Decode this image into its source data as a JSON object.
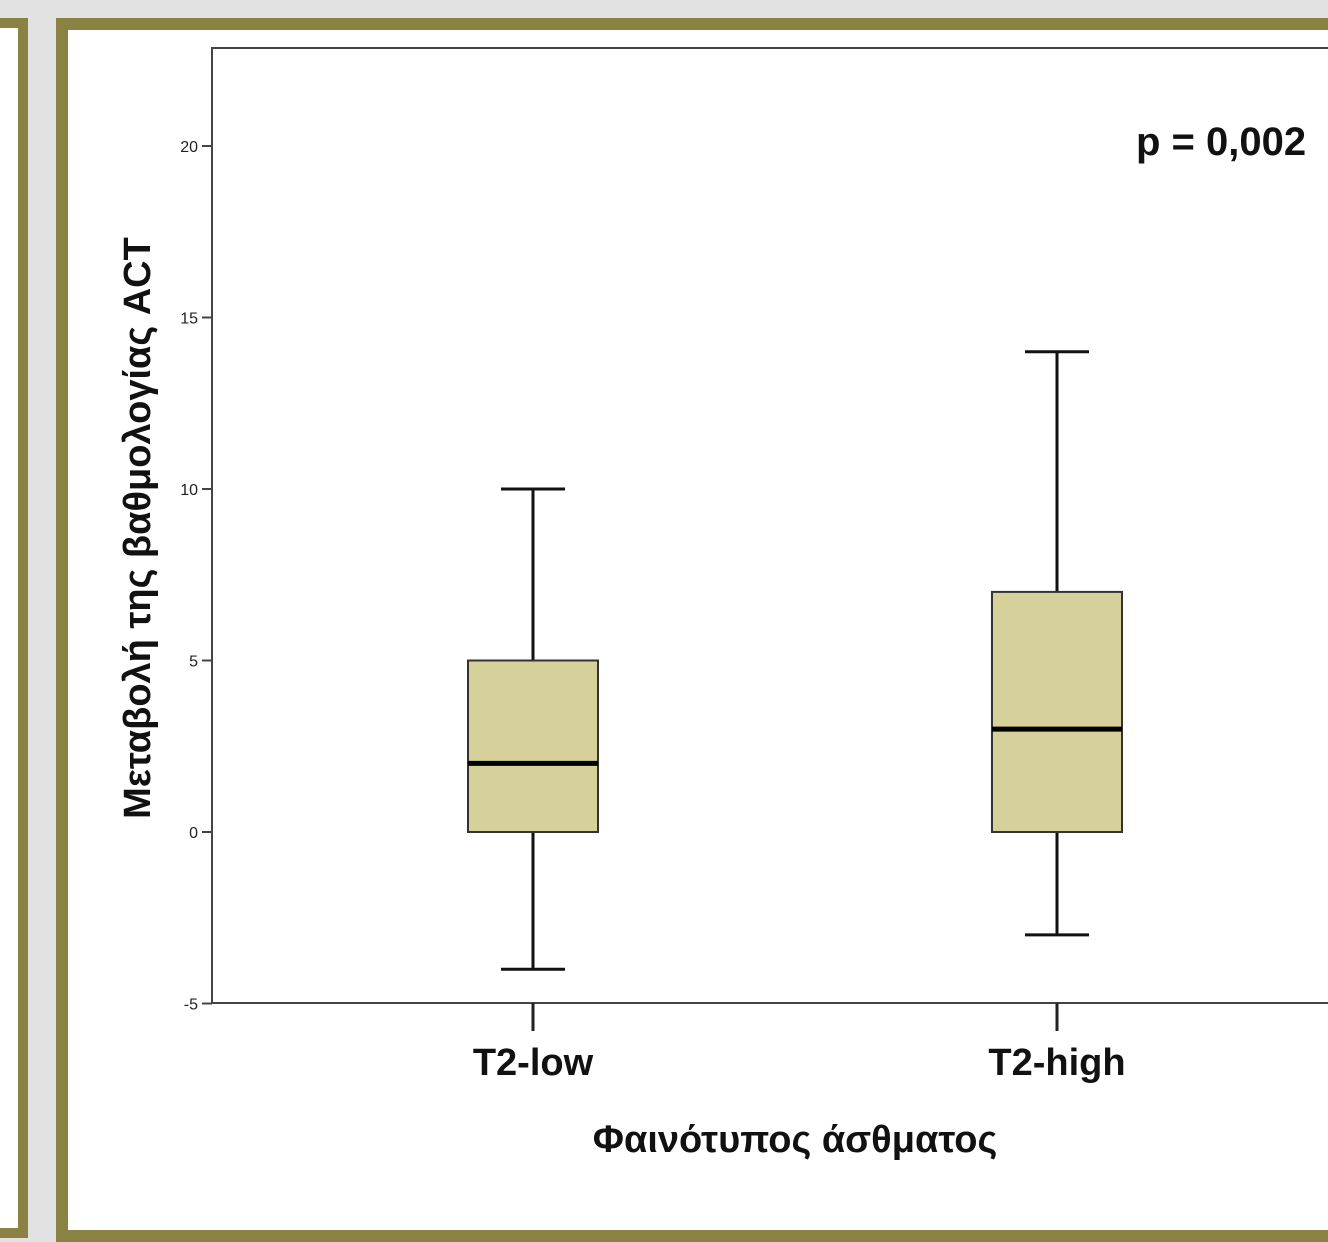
{
  "chart_data": {
    "type": "boxplot",
    "title": "",
    "xlabel": "Φαινότυπος άσθματος",
    "ylabel": "Μεταβολή της βαθμολογίας ACT",
    "ylim": [
      -5,
      23
    ],
    "yticks": [
      -5,
      0,
      5,
      10,
      15,
      20
    ],
    "grid": false,
    "categories": [
      "T2-low",
      "T2-high"
    ],
    "boxes": [
      {
        "category": "T2-low",
        "min": -4,
        "q1": 0,
        "median": 2,
        "q3": 5,
        "max": 10
      },
      {
        "category": "T2-high",
        "min": -3,
        "q1": 0,
        "median": 3,
        "q3": 7,
        "max": 14
      }
    ],
    "annotation": "p = 0,002",
    "box_color": "#d6d09a"
  }
}
